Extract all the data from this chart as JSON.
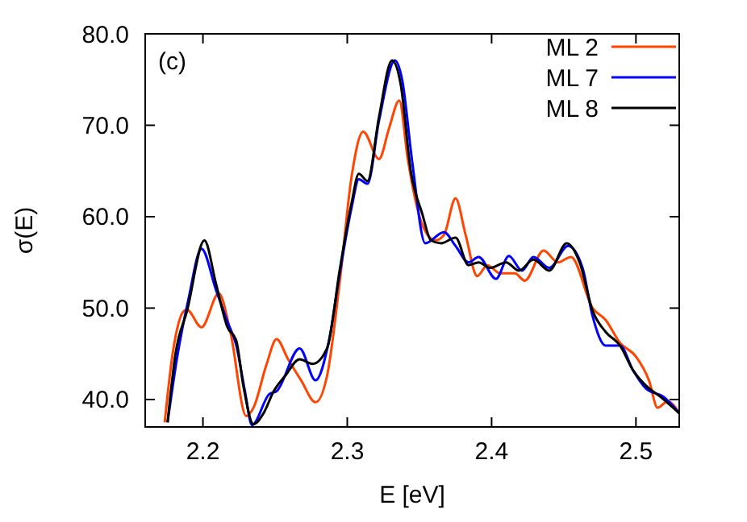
{
  "chart_data": {
    "type": "line",
    "xlabel": "E [eV]",
    "ylabel": "σ(E)",
    "annotations": [
      "(c)"
    ],
    "xlim": [
      2.16,
      2.53
    ],
    "ylim": [
      37,
      80
    ],
    "xticks": [
      2.2,
      2.3,
      2.4,
      2.5
    ],
    "yticks": [
      {
        "value": 40,
        "label": "40.0"
      },
      {
        "value": 50,
        "label": "50.0"
      },
      {
        "value": 60,
        "label": "60.0"
      },
      {
        "value": 70,
        "label": "70.0"
      },
      {
        "value": 80,
        "label": "80.0"
      }
    ],
    "grid": false,
    "legend": "top right",
    "marker": "none",
    "line_style": "solid",
    "series": [
      {
        "name": "ML 2",
        "color": "#ff4500",
        "x": [
          2.1735,
          2.179,
          2.187,
          2.189,
          2.199,
          2.211,
          2.219,
          2.23,
          2.235,
          2.244,
          2.251,
          2.259,
          2.268,
          2.278,
          2.286,
          2.295,
          2.303,
          2.311,
          2.322,
          2.329,
          2.336,
          2.342,
          2.352,
          2.361,
          2.367,
          2.375,
          2.382,
          2.39,
          2.397,
          2.406,
          2.416,
          2.423,
          2.436,
          2.446,
          2.455,
          2.47,
          2.479,
          2.489,
          2.5,
          2.509,
          2.515,
          2.522,
          2.53
        ],
        "values": [
          37.5,
          45,
          49.7,
          49.8,
          47.9,
          51.6,
          47.4,
          38.2,
          39.1,
          43.8,
          46.6,
          44.4,
          42.1,
          39.7,
          42.6,
          53.2,
          64.4,
          69.3,
          66.3,
          69.7,
          72.7,
          66.2,
          59.1,
          57.4,
          58,
          62,
          58,
          53.5,
          54.7,
          53.8,
          53.8,
          53,
          56.3,
          55,
          55.6,
          50,
          48.7,
          46.2,
          44.7,
          42.1,
          39.1,
          39.8,
          38.5
        ]
      },
      {
        "name": "ML 7",
        "color": "#0000ff",
        "x": [
          2.1755,
          2.182,
          2.19,
          2.199,
          2.209,
          2.217,
          2.223,
          2.229,
          2.234,
          2.246,
          2.251,
          2.267,
          2.278,
          2.287,
          2.295,
          2.303,
          2.308,
          2.314,
          2.322,
          2.333,
          2.338,
          2.345,
          2.354,
          2.367,
          2.375,
          2.384,
          2.391,
          2.403,
          2.412,
          2.421,
          2.429,
          2.44,
          2.453,
          2.463,
          2.47,
          2.479,
          2.489,
          2.498,
          2.507,
          2.519,
          2.53
        ],
        "values": [
          37.5,
          44.5,
          51,
          56.5,
          52,
          48.5,
          46,
          41,
          37.2,
          40.6,
          40.9,
          45.6,
          42.1,
          46.2,
          54,
          61,
          64.1,
          63.6,
          70.5,
          77.1,
          75,
          66,
          57.1,
          58.3,
          56.8,
          55,
          55.6,
          53.2,
          55.7,
          54.1,
          55.6,
          54.4,
          56.8,
          54.4,
          49.1,
          45.9,
          45.9,
          43.2,
          41.2,
          40.3,
          38.5
        ]
      },
      {
        "name": "ML 8",
        "color": "#000000",
        "x": [
          2.1755,
          2.181,
          2.189,
          2.201,
          2.209,
          2.217,
          2.223,
          2.228,
          2.235,
          2.242,
          2.249,
          2.257,
          2.267,
          2.276,
          2.286,
          2.295,
          2.303,
          2.308,
          2.314,
          2.322,
          2.331,
          2.337,
          2.344,
          2.352,
          2.358,
          2.365,
          2.375,
          2.384,
          2.391,
          2.399,
          2.41,
          2.419,
          2.429,
          2.44,
          2.452,
          2.461,
          2.47,
          2.479,
          2.489,
          2.498,
          2.507,
          2.517,
          2.53
        ],
        "values": [
          37.5,
          45,
          49.7,
          57.4,
          52.7,
          47.9,
          46.5,
          41.5,
          37.3,
          38.5,
          40.9,
          42.6,
          44.4,
          43.9,
          45.6,
          54.4,
          61.5,
          64.7,
          63.9,
          70.9,
          77.1,
          74.5,
          65,
          60.3,
          57.4,
          57.1,
          57.7,
          54.7,
          55,
          54.4,
          55,
          54.1,
          55.3,
          54.1,
          57.1,
          55,
          49.7,
          47.4,
          45.9,
          43.2,
          41.5,
          40.3,
          38.5
        ]
      }
    ]
  }
}
